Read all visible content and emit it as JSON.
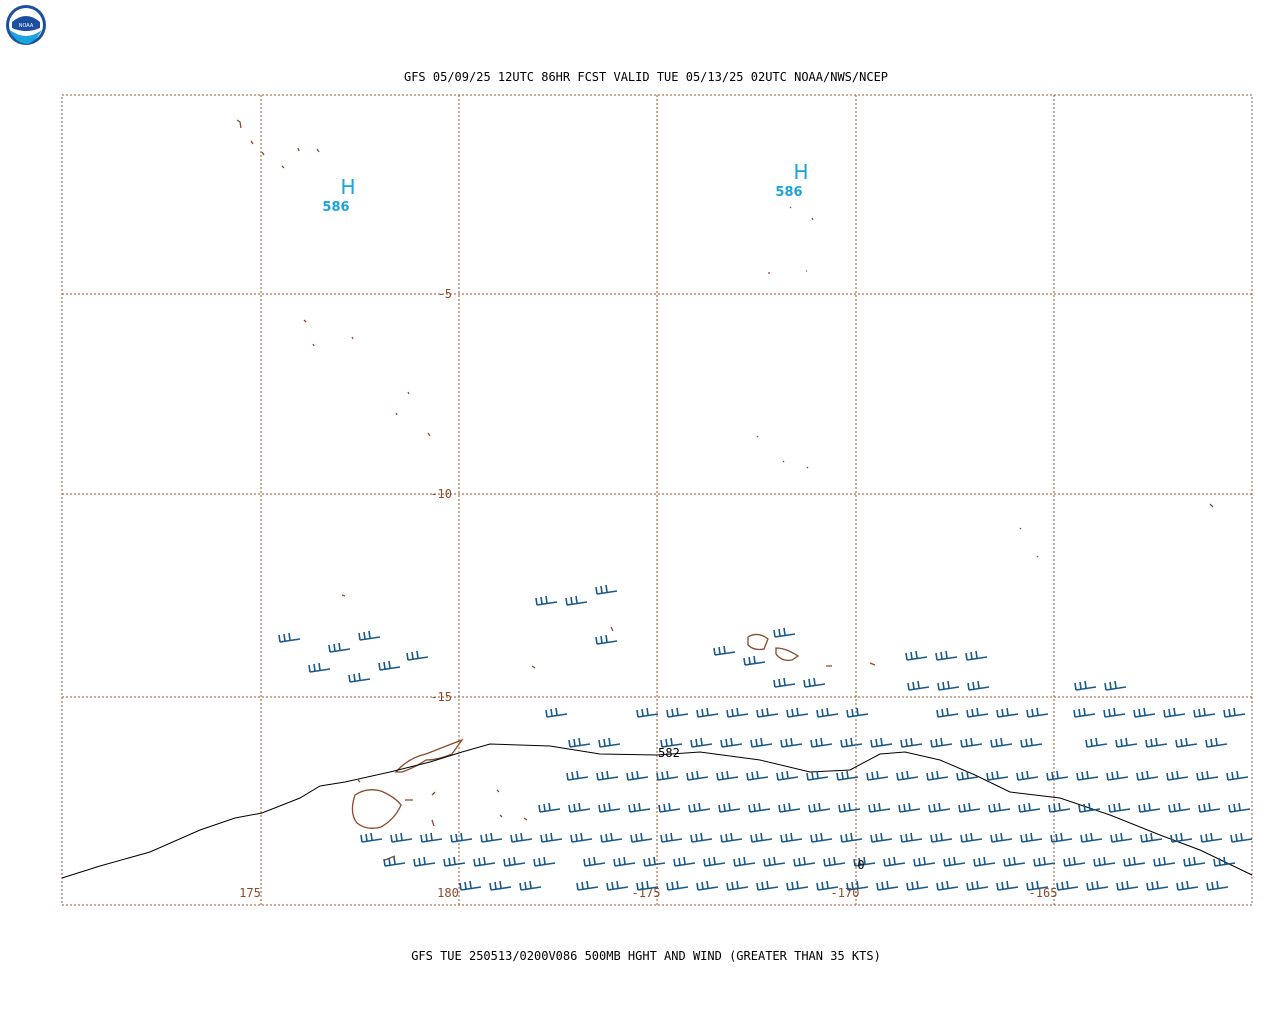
{
  "header": {
    "title": "GFS 05/09/25 12UTC 86HR FCST VALID TUE 05/13/25 02UTC NOAA/NWS/NCEP"
  },
  "map": {
    "lat_labels": [
      "-5",
      "-10",
      "-15"
    ],
    "lon_labels": [
      "175",
      "180",
      "-175",
      "-170",
      "-165"
    ],
    "highs": [
      {
        "symbol": "H",
        "value": "586"
      },
      {
        "symbol": "H",
        "value": "586"
      }
    ],
    "contour_labels": [
      "582",
      "0"
    ]
  },
  "footer": {
    "caption": "GFS TUE 250513/0200V086 500MB HGHT AND WIND (GREATER THAN 35 KTS)"
  }
}
